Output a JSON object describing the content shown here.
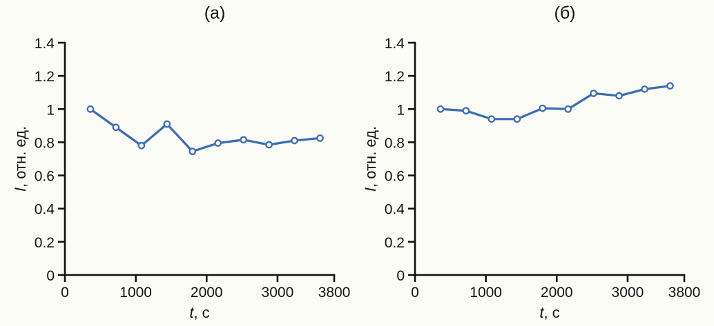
{
  "figure": {
    "background": "#fcfcf7",
    "axis_color": "#111111",
    "accent_color": "#3E6DB4"
  },
  "chart_data": [
    {
      "type": "line",
      "title": "(а)",
      "xlabel": "t, с",
      "xlabel_italic": "t",
      "xlabel_rest": ", с",
      "ylabel": "I, отн. ед.",
      "ylabel_italic": "I",
      "ylabel_rest": ", отн. ед.",
      "xlim": [
        0,
        3800
      ],
      "ylim": [
        0,
        1.4
      ],
      "x_ticks": [
        0,
        1000,
        2000,
        3000,
        3800
      ],
      "x_tick_labels": [
        "0",
        "1000",
        "2000",
        "3000",
        "3800"
      ],
      "y_ticks": [
        0,
        0.2,
        0.4,
        0.6,
        0.8,
        1,
        1.2,
        1.4
      ],
      "y_tick_labels": [
        "0",
        "0.2",
        "0.4",
        "0.6",
        "0.8",
        "1",
        "1.2",
        "1.4"
      ],
      "grid": false,
      "legend": null,
      "line_color": "#3E6DB4",
      "marker": "open-circle",
      "x": [
        360,
        720,
        1080,
        1440,
        1800,
        2160,
        2520,
        2880,
        3240,
        3600
      ],
      "values": [
        1.0,
        0.89,
        0.78,
        0.91,
        0.745,
        0.795,
        0.815,
        0.785,
        0.81,
        0.825
      ]
    },
    {
      "type": "line",
      "title": "(б)",
      "xlabel": "t, с",
      "xlabel_italic": "t",
      "xlabel_rest": ", с",
      "ylabel": "I, отн. ед.",
      "ylabel_italic": "I",
      "ylabel_rest": ", отн. ед.",
      "xlim": [
        0,
        3800
      ],
      "ylim": [
        0,
        1.4
      ],
      "x_ticks": [
        0,
        1000,
        2000,
        3000,
        3800
      ],
      "x_tick_labels": [
        "0",
        "1000",
        "2000",
        "3000",
        "3800"
      ],
      "y_ticks": [
        0,
        0.2,
        0.4,
        0.6,
        0.8,
        1,
        1.2,
        1.4
      ],
      "y_tick_labels": [
        "0",
        "0.2",
        "0.4",
        "0.6",
        "0.8",
        "1",
        "1.2",
        "1.4"
      ],
      "grid": false,
      "legend": null,
      "line_color": "#3E6DB4",
      "marker": "open-circle",
      "x": [
        360,
        720,
        1080,
        1440,
        1800,
        2160,
        2520,
        2880,
        3240,
        3600
      ],
      "values": [
        1.0,
        0.99,
        0.94,
        0.94,
        1.005,
        1.0,
        1.095,
        1.08,
        1.12,
        1.14
      ]
    }
  ]
}
